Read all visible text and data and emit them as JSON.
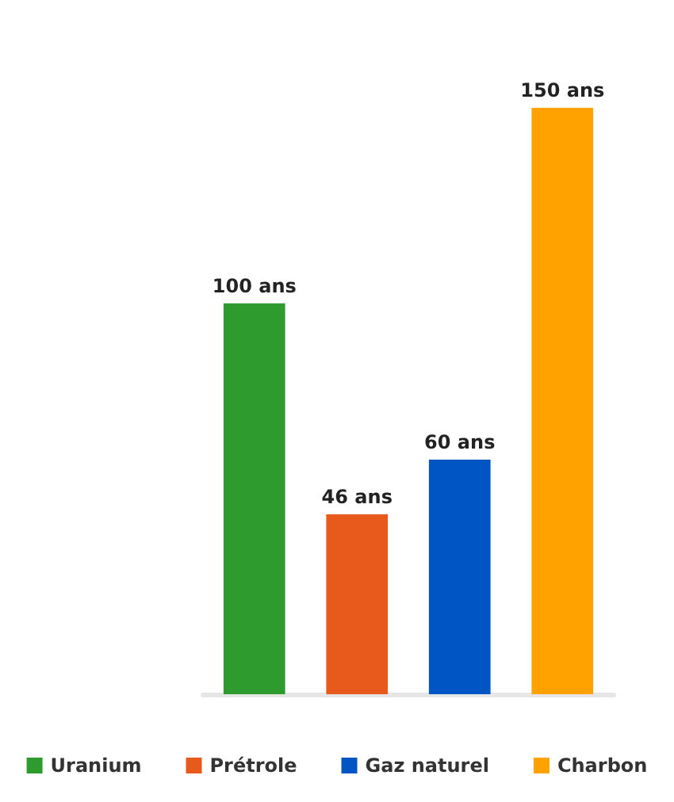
{
  "chart_data": {
    "type": "bar",
    "categories": [
      null,
      null,
      null,
      null
    ],
    "stacked": true,
    "tick_labels": false,
    "grid": false,
    "legend": "bottom",
    "series": [
      {
        "name": "Uranium",
        "color": "#2e9b2e",
        "values": [
          100,
          null,
          null,
          null
        ],
        "value_labels": [
          "100 ans",
          null,
          null,
          null
        ]
      },
      {
        "name": "Prétrole",
        "color": "#e85a1c",
        "values": [
          null,
          46,
          null,
          null
        ],
        "value_labels": [
          null,
          "46 ans",
          null,
          null
        ]
      },
      {
        "name": "Gaz naturel",
        "color": "#0055c4",
        "values": [
          null,
          null,
          60,
          null
        ],
        "value_labels": [
          null,
          null,
          "60 ans",
          null
        ]
      },
      {
        "name": "Charbon",
        "color": "#ffa200",
        "values": [
          null,
          null,
          null,
          150
        ],
        "value_labels": [
          null,
          null,
          null,
          "150 ans"
        ]
      }
    ]
  }
}
